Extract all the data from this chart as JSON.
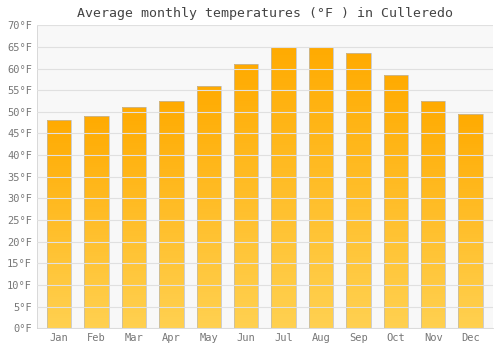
{
  "months": [
    "Jan",
    "Feb",
    "Mar",
    "Apr",
    "May",
    "Jun",
    "Jul",
    "Aug",
    "Sep",
    "Oct",
    "Nov",
    "Dec"
  ],
  "values": [
    48.0,
    49.0,
    51.0,
    52.5,
    56.0,
    61.0,
    65.0,
    65.0,
    63.5,
    58.5,
    52.5,
    49.5
  ],
  "bar_color_main": "#FFAA00",
  "bar_color_light": "#FFD050",
  "bar_edge_color": "#BBBBBB",
  "title": "Average monthly temperatures (°F ) in Culleredo",
  "ylim": [
    0,
    70
  ],
  "yticks": [
    0,
    5,
    10,
    15,
    20,
    25,
    30,
    35,
    40,
    45,
    50,
    55,
    60,
    65,
    70
  ],
  "ytick_labels": [
    "0°F",
    "5°F",
    "10°F",
    "15°F",
    "20°F",
    "25°F",
    "30°F",
    "35°F",
    "40°F",
    "45°F",
    "50°F",
    "55°F",
    "60°F",
    "65°F",
    "70°F"
  ],
  "background_color": "#ffffff",
  "plot_bg_color": "#f8f8f8",
  "grid_color": "#e0e0e0",
  "title_fontsize": 9.5,
  "tick_fontsize": 7.5,
  "font_family": "monospace"
}
